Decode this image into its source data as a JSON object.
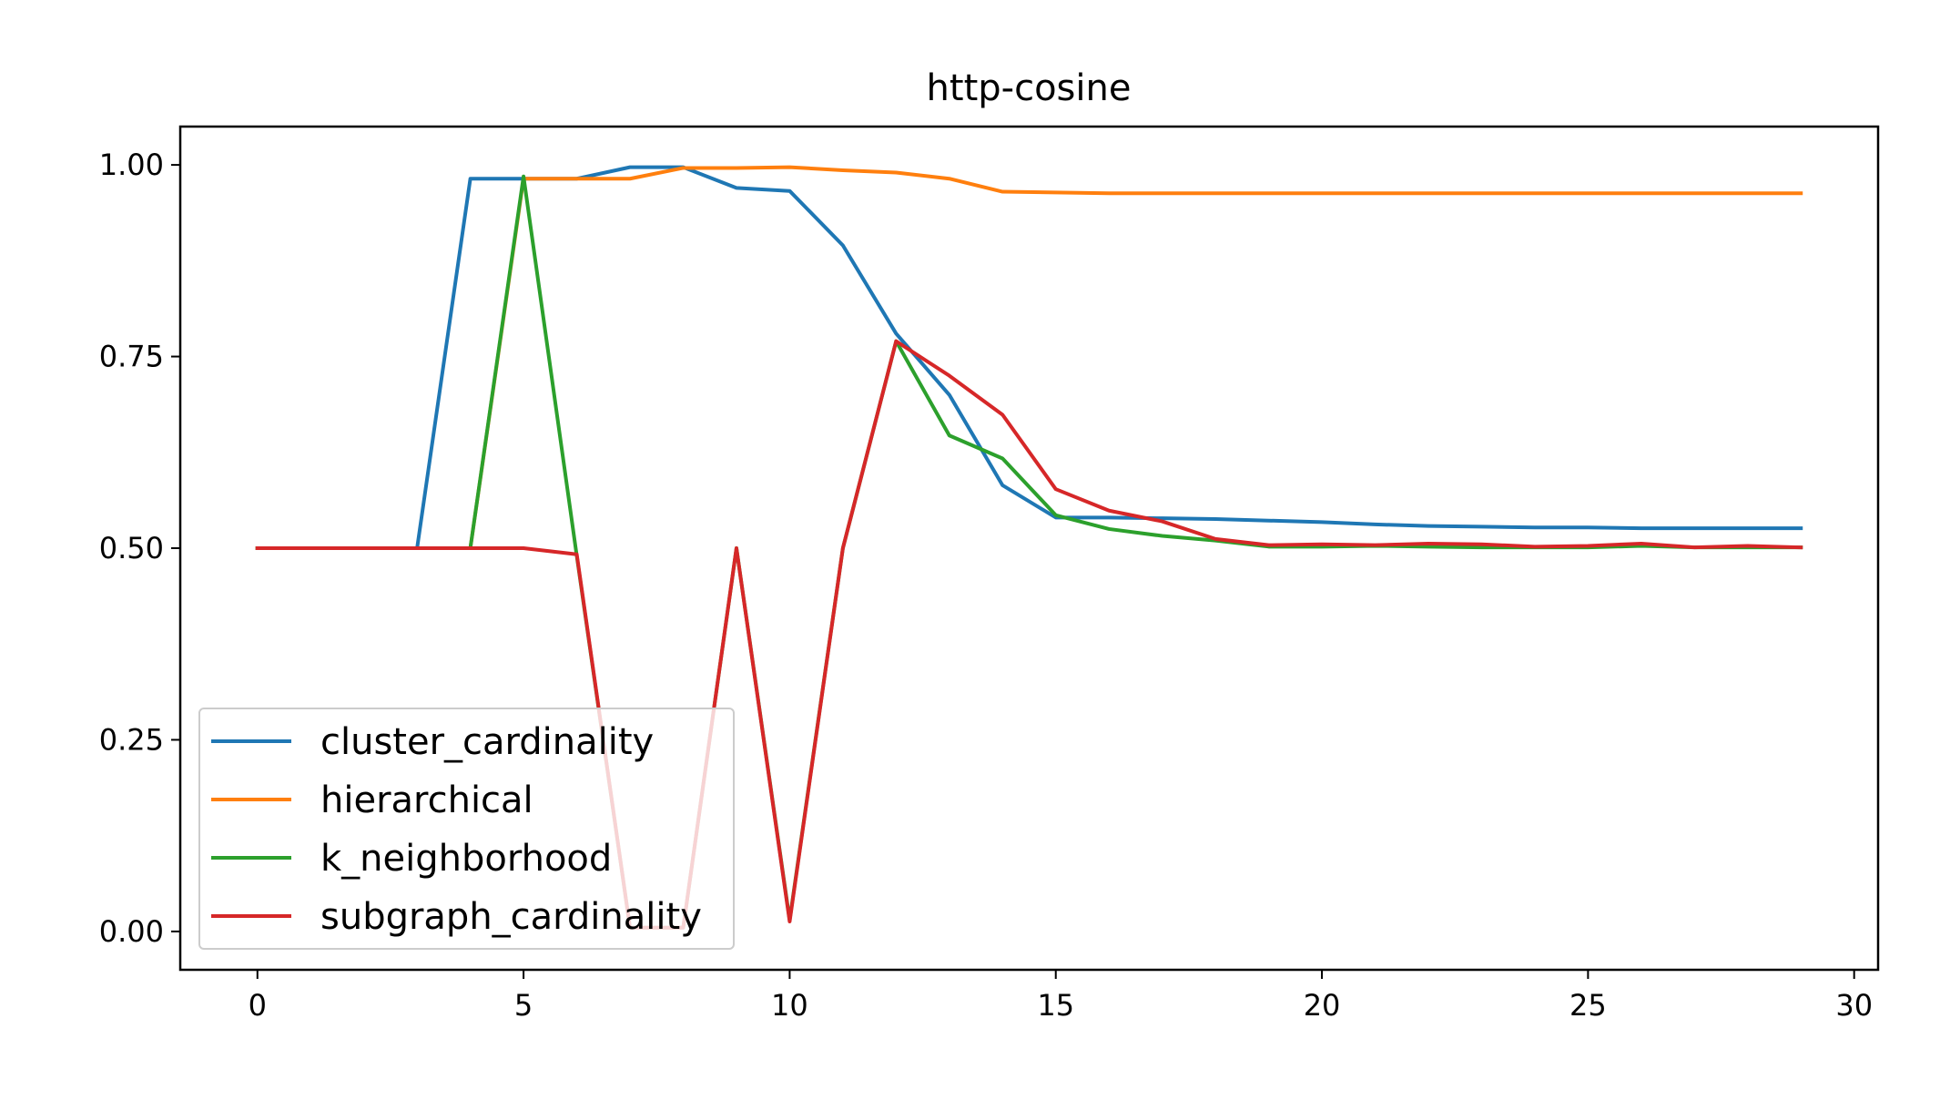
{
  "chart_data": {
    "type": "line",
    "title": "http-cosine",
    "xlabel": "",
    "ylabel": "",
    "xlim": [
      -1.45,
      30.45
    ],
    "ylim": [
      -0.05,
      1.05
    ],
    "x_ticks": [
      0,
      5,
      10,
      15,
      20,
      25,
      30
    ],
    "x_tick_labels": [
      "0",
      "5",
      "10",
      "15",
      "20",
      "25",
      "30"
    ],
    "y_ticks": [
      0.0,
      0.25,
      0.5,
      0.75,
      1.0
    ],
    "y_tick_labels": [
      "0.00",
      "0.25",
      "0.50",
      "0.75",
      "1.00"
    ],
    "grid": false,
    "legend_position": "lower-left",
    "x": [
      0,
      1,
      2,
      3,
      4,
      5,
      6,
      7,
      8,
      9,
      10,
      11,
      12,
      13,
      14,
      15,
      16,
      17,
      18,
      19,
      20,
      21,
      22,
      23,
      24,
      25,
      26,
      27,
      28,
      29
    ],
    "series": [
      {
        "name": "cluster_cardinality",
        "color": "#1f77b4",
        "values": [
          0.5,
          0.5,
          0.5,
          0.5,
          0.982,
          0.982,
          0.982,
          0.997,
          0.997,
          0.97,
          0.966,
          0.895,
          0.78,
          0.7,
          0.582,
          0.54,
          0.54,
          0.539,
          0.538,
          0.536,
          0.534,
          0.531,
          0.529,
          0.528,
          0.527,
          0.527,
          0.526,
          0.526,
          0.526,
          0.526
        ]
      },
      {
        "name": "hierarchical",
        "color": "#ff7f0e",
        "values": [
          0.5,
          0.5,
          0.5,
          0.5,
          0.5,
          0.982,
          0.982,
          0.982,
          0.996,
          0.996,
          0.997,
          0.993,
          0.99,
          0.982,
          0.965,
          0.964,
          0.963,
          0.963,
          0.963,
          0.963,
          0.963,
          0.963,
          0.963,
          0.963,
          0.963,
          0.963,
          0.963,
          0.963,
          0.963,
          0.963
        ]
      },
      {
        "name": "k_neighborhood",
        "color": "#2ca02c",
        "values": [
          0.5,
          0.5,
          0.5,
          0.5,
          0.5,
          0.985,
          0.49,
          0.005,
          0.005,
          0.5,
          0.015,
          0.5,
          0.77,
          0.647,
          0.617,
          0.543,
          0.525,
          0.516,
          0.51,
          0.502,
          0.502,
          0.503,
          0.502,
          0.501,
          0.501,
          0.501,
          0.503,
          0.501,
          0.501,
          0.501
        ]
      },
      {
        "name": "subgraph_cardinality",
        "color": "#d62728",
        "values": [
          0.5,
          0.5,
          0.5,
          0.5,
          0.5,
          0.5,
          0.492,
          0.005,
          0.005,
          0.5,
          0.013,
          0.5,
          0.77,
          0.725,
          0.674,
          0.577,
          0.549,
          0.535,
          0.512,
          0.504,
          0.505,
          0.504,
          0.506,
          0.505,
          0.502,
          0.503,
          0.506,
          0.501,
          0.503,
          0.501
        ]
      }
    ]
  }
}
